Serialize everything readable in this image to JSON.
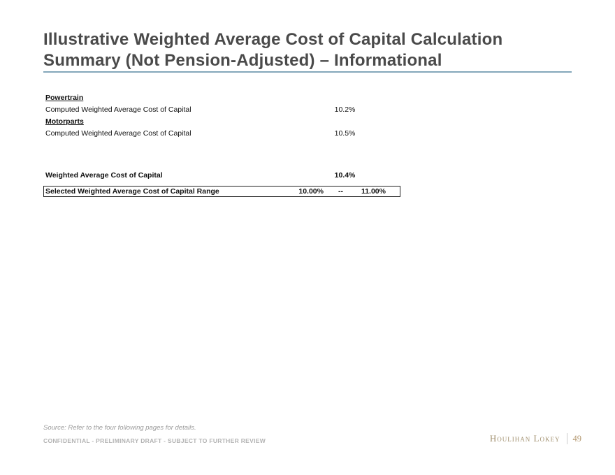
{
  "slide": {
    "title_line1": "Illustrative Weighted Average Cost of Capital Calculation",
    "title_line2": "Summary (Not Pension-Adjusted) – Informational"
  },
  "table": {
    "rows": [
      {
        "type": "section",
        "label": "Powertrain"
      },
      {
        "type": "data",
        "label": "Computed Weighted Average Cost of Capital",
        "value": "10.2%"
      },
      {
        "type": "section",
        "label": "Motorparts"
      },
      {
        "type": "data",
        "label": "Computed Weighted Average Cost of Capital",
        "value": "10.5%"
      },
      {
        "type": "total",
        "label": "Weighted Average Cost of Capital",
        "value": "10.4%"
      },
      {
        "type": "range",
        "label": "Selected Weighted Average Cost of Capital Range",
        "low": "10.00%",
        "dash": "--",
        "high": "11.00%"
      }
    ]
  },
  "footer": {
    "source_note": "Source: Refer to the four following pages for details.",
    "confidential_note": "CONFIDENTIAL - PRELIMINARY DRAFT - SUBJECT TO FURTHER REVIEW",
    "brand": "Houlihan Lokey",
    "page_number": "49"
  },
  "colors": {
    "title_text": "#4a4a4a",
    "accent_rule": "#84a7ba",
    "table_text": "#111111",
    "range_box_border": "#222222",
    "source_text": "#9b9b9b",
    "confidential_text": "#b3b3b3",
    "brand_text": "#a29170",
    "page_number_text": "#b59a72"
  }
}
